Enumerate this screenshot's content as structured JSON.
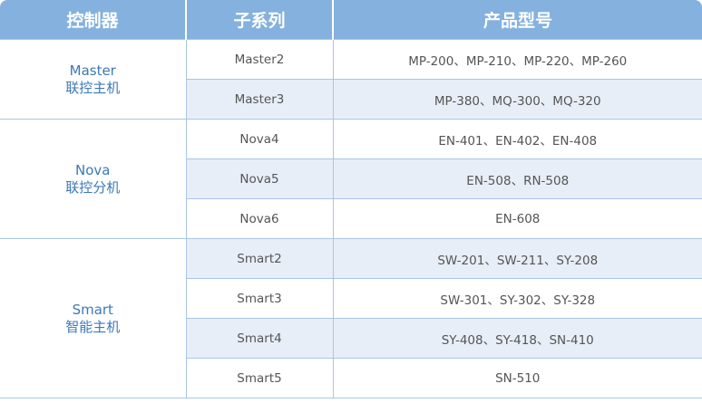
{
  "headers": [
    "控制器",
    "子系列",
    "产品型号"
  ],
  "groups": [
    {
      "name": "Master",
      "desc": "联控主机",
      "rows": [
        {
          "sub": "Master2",
          "models": "MP-200、MP-210、MP-220、MP-260"
        },
        {
          "sub": "Master3",
          "models": "MP-380、MQ-300、MQ-320"
        }
      ]
    },
    {
      "name": "Nova",
      "desc": "联控分机",
      "rows": [
        {
          "sub": "Nova4",
          "models": "EN-401、EN-402、EN-408"
        },
        {
          "sub": "Nova5",
          "models": "EN-508、RN-508"
        },
        {
          "sub": "Nova6",
          "models": "EN-608"
        }
      ]
    },
    {
      "name": "Smart",
      "desc": "智能主机",
      "rows": [
        {
          "sub": "Smart2",
          "models": "SW-201、SW-211、SY-208"
        },
        {
          "sub": "Smart3",
          "models": "SW-301、SY-302、SY-328"
        },
        {
          "sub": "Smart4",
          "models": "SY-408、SY-418、SN-410"
        },
        {
          "sub": "Smart5",
          "models": "SN-510"
        }
      ]
    }
  ],
  "colors": {
    "header": "#84b1de",
    "alt_row": "#e8eef8",
    "group_text": "#3d78b8",
    "border": "#a9c5e6"
  }
}
